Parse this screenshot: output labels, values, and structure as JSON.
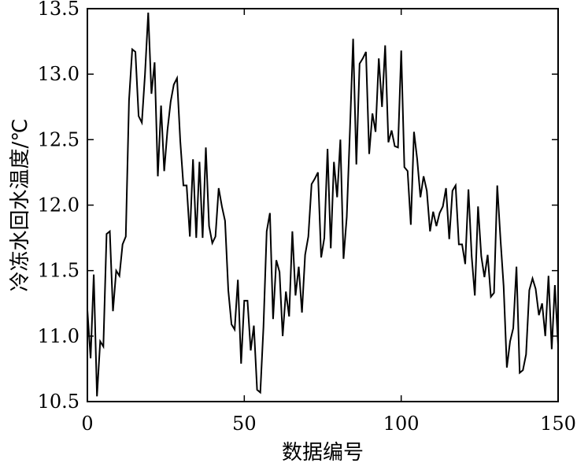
{
  "chart_data": {
    "type": "line",
    "title": "",
    "xlabel": "数据编号",
    "ylabel": "冷冻水回水温度/℃",
    "xlim": [
      0,
      150
    ],
    "ylim": [
      10.5,
      13.5
    ],
    "xticks": [
      0,
      50,
      100,
      150
    ],
    "xtick_labels": [
      "0",
      "50",
      "100",
      "150"
    ],
    "yticks": [
      10.5,
      11.0,
      11.5,
      12.0,
      12.5,
      13.0,
      13.5
    ],
    "ytick_labels": [
      "10.5",
      "11.0",
      "11.5",
      "12.0",
      "12.5",
      "13.0",
      "13.5"
    ],
    "grid": false,
    "line_color": "#000000",
    "series": [
      {
        "values": [
          11.2,
          10.83,
          11.47,
          10.54,
          10.96,
          10.92,
          11.78,
          11.8,
          11.19,
          11.5,
          11.46,
          11.7,
          11.76,
          12.8,
          13.19,
          13.17,
          12.68,
          12.63,
          13.0,
          13.47,
          12.85,
          13.09,
          12.22,
          12.76,
          12.26,
          12.57,
          12.79,
          12.92,
          12.97,
          12.49,
          12.15,
          12.15,
          11.76,
          12.35,
          11.75,
          12.33,
          11.75,
          12.44,
          11.84,
          11.71,
          11.76,
          12.13,
          11.99,
          11.88,
          11.35,
          11.09,
          11.05,
          11.43,
          10.79,
          11.27,
          11.27,
          10.89,
          11.08,
          10.59,
          10.57,
          11.07,
          11.8,
          11.94,
          11.13,
          11.58,
          11.49,
          11.0,
          11.34,
          11.15,
          11.8,
          11.31,
          11.53,
          11.18,
          11.62,
          11.76,
          12.16,
          12.2,
          12.25,
          11.6,
          11.75,
          12.43,
          11.67,
          12.33,
          12.06,
          12.5,
          11.59,
          11.91,
          12.58,
          13.27,
          12.31,
          13.08,
          13.12,
          13.17,
          12.39,
          12.7,
          12.56,
          13.12,
          12.75,
          13.22,
          12.48,
          12.57,
          12.45,
          12.44,
          13.18,
          12.29,
          12.26,
          11.85,
          12.56,
          12.35,
          12.06,
          12.22,
          12.11,
          11.8,
          11.95,
          11.84,
          11.94,
          11.99,
          12.13,
          11.74,
          12.11,
          12.15,
          11.7,
          11.7,
          11.55,
          12.12,
          11.61,
          11.31,
          11.99,
          11.61,
          11.45,
          11.62,
          11.3,
          11.33,
          12.15,
          11.74,
          11.38,
          10.76,
          10.96,
          11.06,
          11.53,
          10.72,
          10.74,
          10.86,
          11.35,
          11.44,
          11.36,
          11.16,
          11.25,
          11.0,
          11.46,
          10.9,
          11.39,
          10.93
        ]
      }
    ]
  }
}
